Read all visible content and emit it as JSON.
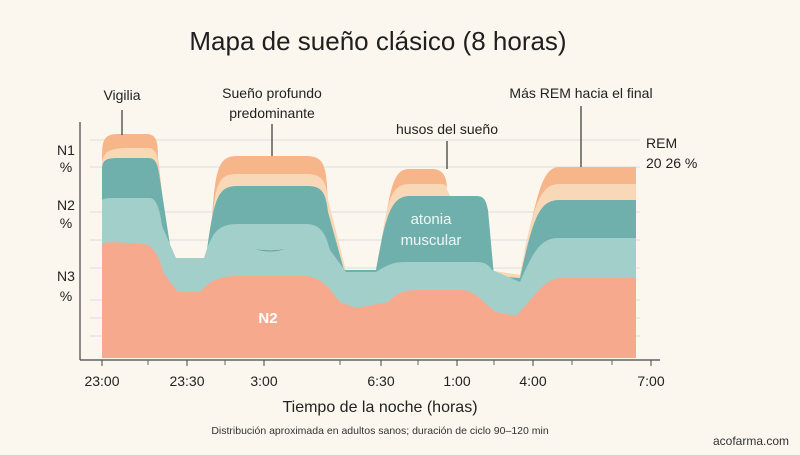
{
  "title": "Mapa de sueño clásico (8 horas)",
  "chart_data": {
    "type": "area",
    "xlabel": "Tiempo de la noche (horas)",
    "caption": "Distribución aproximada en adultos sanos; duración de ciclo 90–120 min",
    "x_ticks": [
      "23:00",
      "23:30",
      "3:00",
      "6:30",
      "1:00",
      "4:00",
      "7:00"
    ],
    "y_labels": [
      {
        "text": "N1",
        "sub": "%"
      },
      {
        "text": "N2",
        "sub": "%"
      },
      {
        "text": "N3",
        "sub": "%"
      }
    ],
    "rem_label": {
      "text": "REM",
      "sub": "20 26 %"
    },
    "annotations": [
      {
        "text": "Vigilia"
      },
      {
        "text": "Sueño profundo",
        "text2": "predominante"
      },
      {
        "text": "husos del sueño"
      },
      {
        "text": "Más REM hacia el final"
      }
    ],
    "region_labels": {
      "atonia_1": "atonia",
      "atonia_2": "muscular",
      "n2": "N2"
    },
    "colors": {
      "rem_top": "#f7b58a",
      "rem_light": "#f9d8b8",
      "teal_dark": "#6fb0ad",
      "teal_light": "#a2cfca",
      "n3_salmon": "#f7a98d",
      "background": "#fbf7ee",
      "grid": "#dddddd"
    }
  },
  "watermark": "acofarma.com"
}
